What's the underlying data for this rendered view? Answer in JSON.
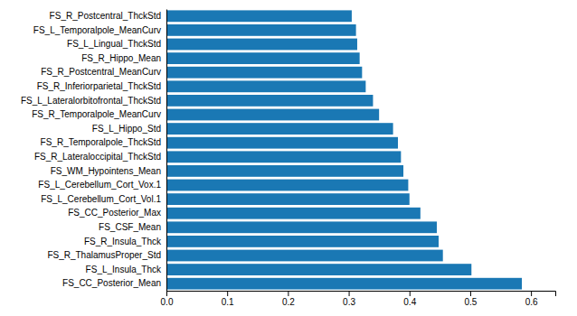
{
  "chart_data": {
    "type": "bar",
    "orientation": "horizontal",
    "categories": [
      "FS_CC_Posterior_Mean",
      "FS_L_Insula_Thck",
      "FS_R_ThalamusProper_Std",
      "FS_R_Insula_Thck",
      "FS_CSF_Mean",
      "FS_CC_Posterior_Max",
      "FS_L_Cerebellum_Cort_Vol.1",
      "FS_L_Cerebellum_Cort_Vox.1",
      "FS_WM_Hypointens_Mean",
      "FS_R_Lateraloccipital_ThckStd",
      "FS_R_Temporalpole_ThckStd",
      "FS_L_Hippo_Std",
      "FS_R_Temporalpole_MeanCurv",
      "FS_L_Lateralorbitofrontal_ThckStd",
      "FS_R_Inferiorparietal_ThckStd",
      "FS_R_Postcentral_MeanCurv",
      "FS_R_Hippo_Mean",
      "FS_L_Lingual_ThckStd",
      "FS_L_Temporalpole_MeanCurv",
      "FS_R_Postcentral_ThckStd"
    ],
    "values": [
      0.585,
      0.502,
      0.455,
      0.448,
      0.445,
      0.418,
      0.4,
      0.398,
      0.39,
      0.386,
      0.381,
      0.373,
      0.35,
      0.34,
      0.328,
      0.322,
      0.318,
      0.314,
      0.312,
      0.305
    ],
    "color": "#1a78b4",
    "xlim": [
      0.0,
      0.64
    ],
    "xticks": [
      {
        "value": 0.0,
        "label": "0.0"
      },
      0.1,
      0.2,
      0.3,
      0.4,
      0.5,
      0.6
    ],
    "grid": false
  }
}
